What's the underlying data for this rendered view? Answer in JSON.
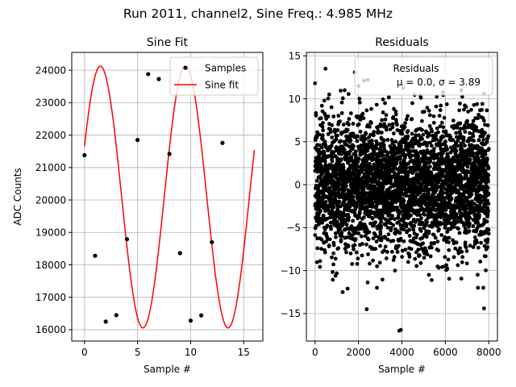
{
  "figure": {
    "suptitle": "Run 2011, channel2, Sine Freq.: 4.985 MHz"
  },
  "chart_data": [
    {
      "type": "scatter+line",
      "title": "Sine Fit",
      "xlabel": "Sample #",
      "ylabel": "ADC Counts",
      "xlim": [
        -1.2,
        16.8
      ],
      "ylim": [
        15650,
        24550
      ],
      "xticks": [
        0,
        5,
        10,
        15
      ],
      "yticks": [
        16000,
        17000,
        18000,
        19000,
        20000,
        21000,
        22000,
        23000,
        24000
      ],
      "grid": true,
      "legend_placement": "top-right",
      "series": [
        {
          "name": "Samples",
          "style": "markers",
          "color": "#000000",
          "x": [
            0,
            1,
            2,
            3,
            4,
            5,
            6,
            7,
            8,
            9,
            10,
            11,
            12,
            13
          ],
          "y": [
            21380,
            18280,
            16250,
            16450,
            18790,
            21850,
            23880,
            23730,
            21420,
            18360,
            16280,
            16440,
            18700,
            21760
          ]
        },
        {
          "name": "Sine fit",
          "style": "line",
          "color": "#ff0000",
          "model": {
            "offset": 20090,
            "amplitude": 4035,
            "period": 8.02,
            "phase_deg": 22.8,
            "x_range": [
              0,
              16
            ]
          }
        }
      ]
    },
    {
      "type": "scatter",
      "title": "Residuals",
      "xlabel": "Sample #",
      "ylabel": "",
      "xlim": [
        -400,
        8400
      ],
      "ylim": [
        -18.2,
        15.4
      ],
      "xticks": [
        0,
        2000,
        4000,
        6000,
        8000
      ],
      "yticks": [
        -15,
        -10,
        -5,
        0,
        5,
        10,
        15
      ],
      "grid": true,
      "legend_placement": "top-right",
      "legend": [
        "Residuals",
        "μ = 0.0, σ = 3.89"
      ],
      "series": [
        {
          "name": "Residuals",
          "color": "#000000",
          "n_samples": 8000,
          "mu": 0.0,
          "sigma": 3.89,
          "outliers": [
            {
              "x": 480,
              "y": 13.5
            },
            {
              "x": 1830,
              "y": 13.1
            },
            {
              "x": 2250,
              "y": 12.1
            },
            {
              "x": 2430,
              "y": 12.2
            },
            {
              "x": 2380,
              "y": -14.5
            },
            {
              "x": 3880,
              "y": -17.0
            },
            {
              "x": 3950,
              "y": -16.9
            },
            {
              "x": 7780,
              "y": -14.4
            },
            {
              "x": 0,
              "y": 11.8
            },
            {
              "x": 2000,
              "y": 11.5
            },
            {
              "x": 4060,
              "y": 11.3
            },
            {
              "x": 650,
              "y": 10.5
            },
            {
              "x": 1270,
              "y": -12.5
            },
            {
              "x": 1500,
              "y": -12.1
            },
            {
              "x": 2850,
              "y": -12.0
            },
            {
              "x": 7500,
              "y": -12.0
            },
            {
              "x": 7750,
              "y": -12.0
            },
            {
              "x": 6730,
              "y": 11.0
            }
          ]
        }
      ]
    }
  ]
}
